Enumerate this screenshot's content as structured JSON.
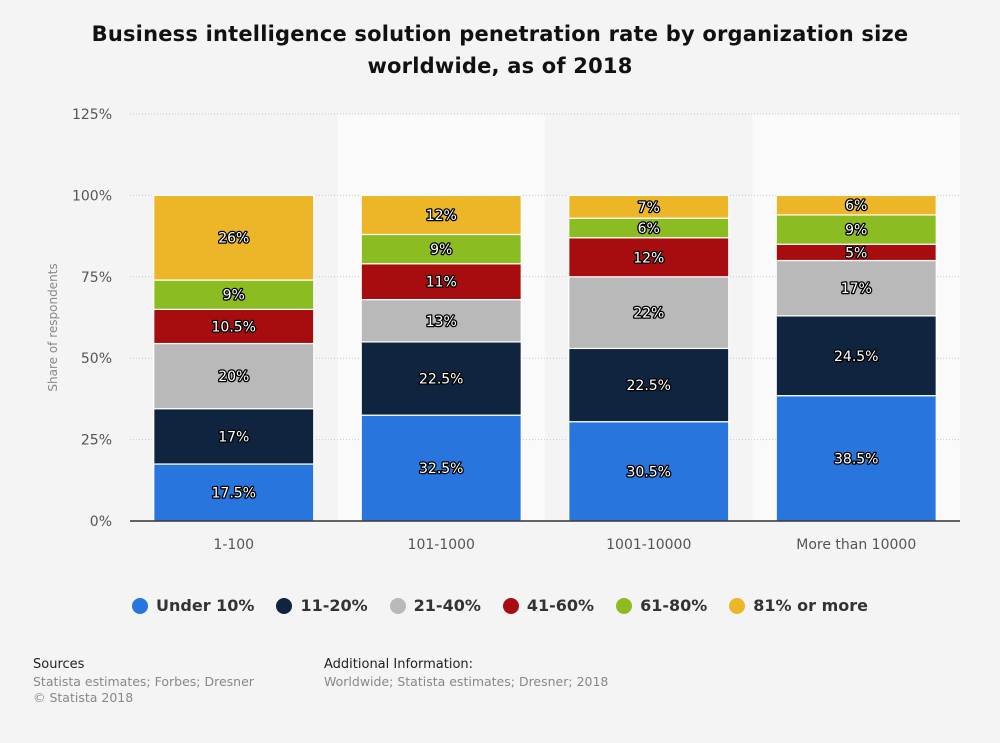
{
  "title": "Business intelligence solution penetration rate by organization size worldwide, as of 2018",
  "chart_data": {
    "type": "bar",
    "stacked": true,
    "title": "Business intelligence solution penetration rate by organization size worldwide, as of 2018",
    "categories": [
      "1-100",
      "101-1000",
      "1001-10000",
      "More than 10000"
    ],
    "ylabel": "Share of respondents",
    "ylim": [
      0,
      125
    ],
    "yticks": [
      0,
      25,
      50,
      75,
      100,
      125
    ],
    "ytick_labels": [
      "0%",
      "25%",
      "50%",
      "75%",
      "100%",
      "125%"
    ],
    "grid": true,
    "legend_position": "bottom",
    "series": [
      {
        "name": "Under 10%",
        "color": "#2876dd",
        "values": [
          17.5,
          32.5,
          30.5,
          38.5
        ],
        "labels": [
          "17.5%",
          "32.5%",
          "30.5%",
          "38.5%"
        ]
      },
      {
        "name": "11-20%",
        "color": "#0f243e",
        "values": [
          17,
          22.5,
          22.5,
          24.5
        ],
        "labels": [
          "17%",
          "22.5%",
          "22.5%",
          "24.5%"
        ]
      },
      {
        "name": "21-40%",
        "color": "#b9b9b9",
        "values": [
          20,
          13,
          22,
          17
        ],
        "labels": [
          "20%",
          "13%",
          "22%",
          "17%"
        ]
      },
      {
        "name": "41-60%",
        "color": "#a70d0e",
        "values": [
          10.5,
          11,
          12,
          5
        ],
        "labels": [
          "10.5%",
          "11%",
          "12%",
          "5%"
        ]
      },
      {
        "name": "61-80%",
        "color": "#8bbc21",
        "values": [
          9,
          9,
          6,
          9
        ],
        "labels": [
          "9%",
          "9%",
          "6%",
          "9%"
        ]
      },
      {
        "name": "81% or more",
        "color": "#edb629",
        "values": [
          26,
          12,
          7,
          6
        ],
        "labels": [
          "26%",
          "12%",
          "7%",
          "6%"
        ]
      }
    ]
  },
  "footer": {
    "sources_heading": "Sources",
    "sources_line1": "Statista estimates; Forbes; Dresner",
    "sources_line2": "© Statista 2018",
    "additional_heading": "Additional Information:",
    "additional_text": "Worldwide; Statista estimates; Dresner; 2018"
  }
}
